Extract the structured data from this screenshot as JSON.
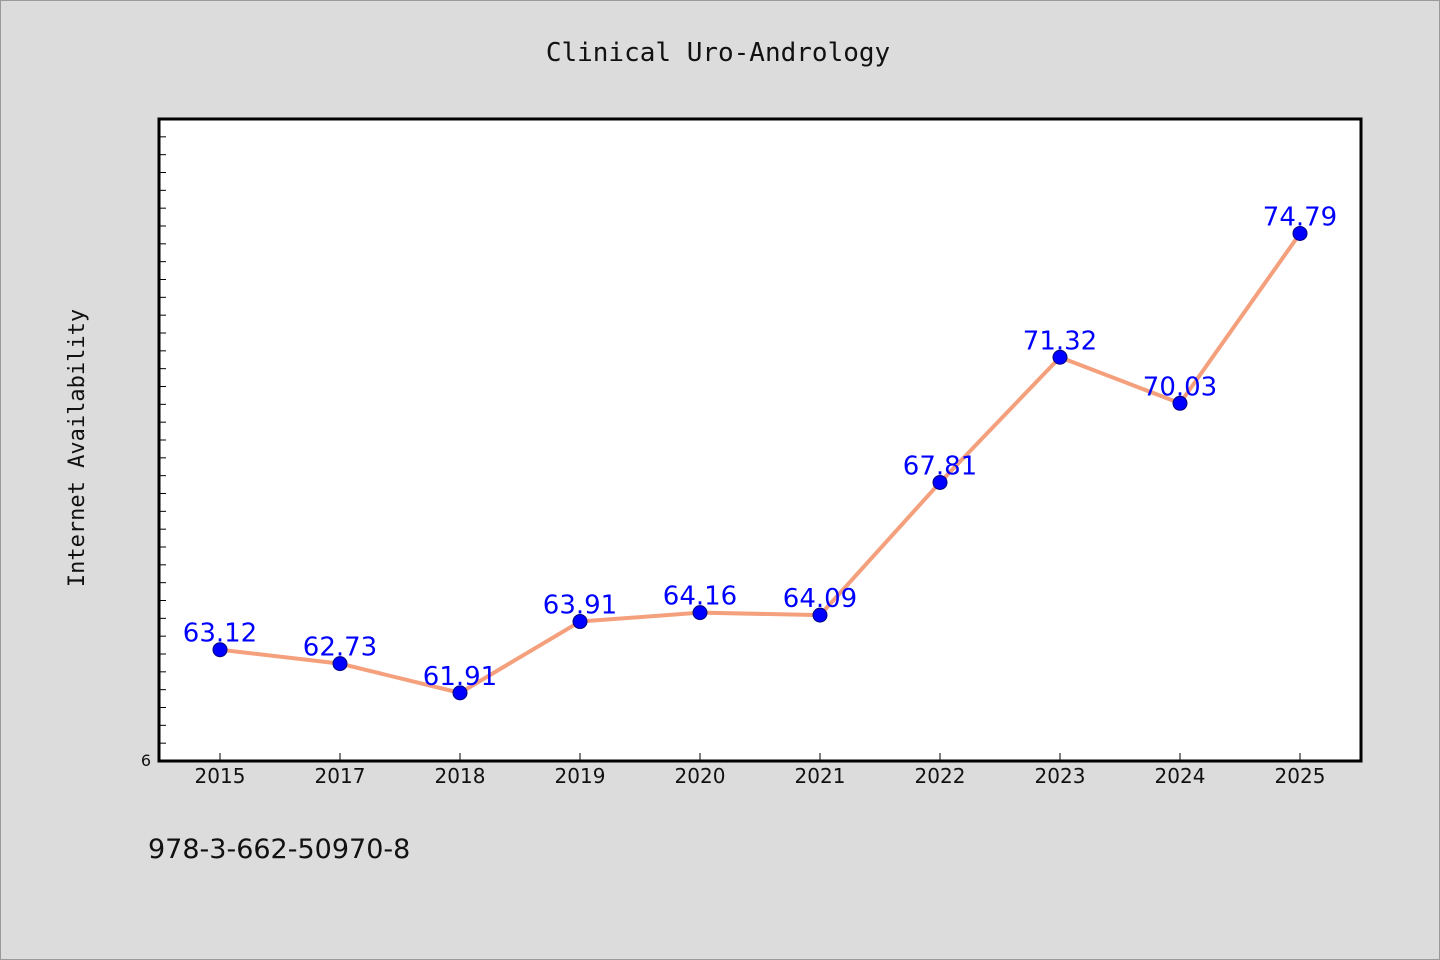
{
  "chart_data": {
    "type": "line",
    "title": "Clinical Uro-Andrology",
    "xlabel": "",
    "ylabel": "Internet Availability",
    "categories": [
      "2015",
      "2017",
      "2018",
      "2019",
      "2020",
      "2021",
      "2022",
      "2023",
      "2024",
      "2025"
    ],
    "series": [
      {
        "values": [
          63.12,
          62.73,
          61.91,
          63.91,
          64.16,
          64.09,
          67.81,
          71.32,
          70.03,
          74.79
        ],
        "labels": [
          "63.12",
          "62.73",
          "61.91",
          "63.91",
          "64.16",
          "64.09",
          "67.81",
          "71.32",
          "70.03",
          "74.79"
        ]
      }
    ],
    "ylim": [
      60,
      78
    ],
    "y_axis_visible_label": "6",
    "grid": false,
    "line_color": "#f4a07c",
    "marker_color": "#0000ff",
    "label_color": "#0000ff"
  },
  "footer": {
    "code": "978-3-662-50970-8"
  }
}
